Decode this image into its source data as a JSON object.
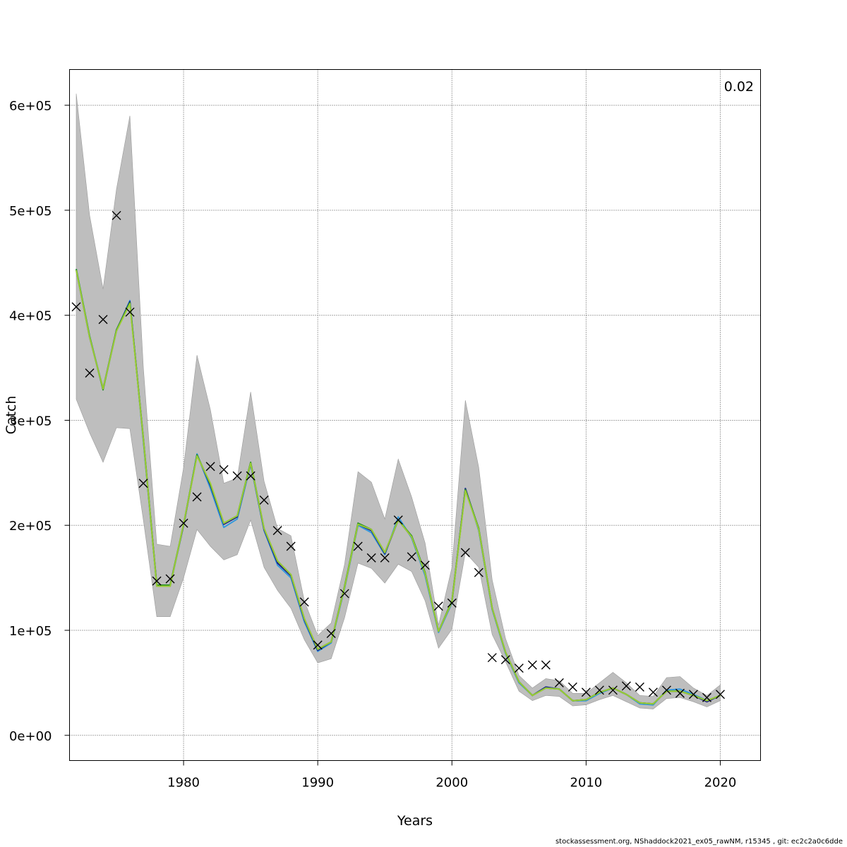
{
  "chart_data": {
    "type": "line",
    "title": "",
    "xlabel": "Years",
    "ylabel": "Catch",
    "corner_label": "0.02",
    "xlim": [
      1971.5,
      2023
    ],
    "ylim": [
      -24000,
      634000
    ],
    "xticks": [
      1980,
      1990,
      2000,
      2010,
      2020
    ],
    "xtick_labels": [
      "1980",
      "1990",
      "2000",
      "2010",
      "2020"
    ],
    "yticks": [
      0,
      100000,
      200000,
      300000,
      400000,
      500000,
      600000
    ],
    "ytick_labels": [
      "0e+00",
      "1e+05",
      "2e+05",
      "3e+05",
      "4e+05",
      "5e+05",
      "6e+05"
    ],
    "grid": true,
    "band_color": "#bebebe",
    "x": [
      1972,
      1973,
      1974,
      1975,
      1976,
      1977,
      1978,
      1979,
      1980,
      1981,
      1982,
      1983,
      1984,
      1985,
      1986,
      1987,
      1988,
      1989,
      1990,
      1991,
      1992,
      1993,
      1994,
      1995,
      1996,
      1997,
      1998,
      1999,
      2000,
      2001,
      2002,
      2003,
      2004,
      2005,
      2006,
      2007,
      2008,
      2009,
      2010,
      2011,
      2012,
      2013,
      2014,
      2015,
      2016,
      2017,
      2018,
      2019,
      2020
    ],
    "observed": {
      "marker": "x",
      "color": "#000000",
      "values": [
        408000,
        345000,
        396000,
        495000,
        403000,
        240000,
        147000,
        149000,
        202000,
        227000,
        256000,
        253000,
        247000,
        247000,
        224000,
        195000,
        180000,
        127000,
        86000,
        97000,
        135000,
        180000,
        169000,
        169000,
        205000,
        170000,
        162000,
        123000,
        126000,
        174000,
        155000,
        74000,
        72000,
        64000,
        67000,
        67000,
        50000,
        46000,
        41000,
        43000,
        43000,
        47000,
        46000,
        41000,
        43000,
        40000,
        39000,
        36000,
        39000
      ]
    },
    "upper": [
      611000,
      495000,
      425000,
      520000,
      590000,
      350000,
      182000,
      180000,
      255000,
      362000,
      310000,
      240000,
      245000,
      327000,
      242000,
      197000,
      190000,
      128000,
      95000,
      107000,
      163000,
      251000,
      241000,
      206000,
      263000,
      227000,
      183000,
      105000,
      160000,
      319000,
      255000,
      148000,
      92000,
      57000,
      45000,
      54000,
      52000,
      40000,
      40000,
      50000,
      60000,
      50000,
      38000,
      37000,
      55000,
      56000,
      45000,
      38000,
      48000
    ],
    "lower": [
      320000,
      288000,
      260000,
      293000,
      292000,
      205000,
      113000,
      113000,
      150000,
      196000,
      180000,
      167000,
      172000,
      205000,
      160000,
      138000,
      121000,
      91000,
      69000,
      73000,
      112000,
      164000,
      159000,
      145000,
      163000,
      156000,
      128000,
      83000,
      101000,
      174000,
      160000,
      96000,
      70000,
      42000,
      33000,
      38000,
      37000,
      28000,
      29000,
      34000,
      38000,
      32000,
      26000,
      25000,
      35000,
      36000,
      32000,
      27000,
      33000
    ],
    "series": [
      {
        "color": "#3399dd",
        "values": [
          444000,
          380000,
          330000,
          385000,
          414000,
          280000,
          142000,
          142000,
          200000,
          268000,
          235000,
          198000,
          206000,
          258000,
          195000,
          162000,
          150000,
          108000,
          80000,
          88000,
          140000,
          200000,
          193000,
          172000,
          208000,
          188000,
          152000,
          98000,
          126000,
          235000,
          195000,
          120000,
          78000,
          50000,
          38000,
          46000,
          44000,
          33000,
          33000,
          40000,
          45000,
          39000,
          30000,
          29000,
          43000,
          44000,
          39000,
          33000,
          38000
        ]
      },
      {
        "color": "#1a1a8a",
        "values": [
          443000,
          379000,
          330000,
          386000,
          413000,
          282000,
          143000,
          143000,
          200000,
          267000,
          238000,
          201000,
          208000,
          259000,
          196000,
          164000,
          152000,
          110000,
          81000,
          89000,
          141000,
          201000,
          195000,
          173000,
          205000,
          189000,
          154000,
          99000,
          127000,
          235000,
          196000,
          121000,
          79000,
          51000,
          38000,
          46000,
          44000,
          33000,
          34000,
          41000,
          45000,
          39000,
          31000,
          30000,
          42000,
          42000,
          38000,
          32000,
          38000
        ]
      },
      {
        "color": "#228b22",
        "values": [
          444000,
          380000,
          329000,
          386000,
          412000,
          283000,
          143000,
          143000,
          201000,
          267000,
          239000,
          202000,
          209000,
          260000,
          197000,
          166000,
          153000,
          111000,
          82000,
          89000,
          142000,
          202000,
          196000,
          174000,
          205000,
          190000,
          155000,
          99000,
          128000,
          234000,
          197000,
          121000,
          79000,
          51000,
          38000,
          45000,
          44000,
          33000,
          34000,
          41000,
          45000,
          39000,
          31000,
          30000,
          42000,
          42000,
          38000,
          33000,
          38000
        ]
      },
      {
        "color": "#9acd32",
        "values": [
          443000,
          379000,
          330000,
          385000,
          411000,
          282000,
          142000,
          142000,
          201000,
          266000,
          240000,
          202000,
          209000,
          259000,
          197000,
          166000,
          153000,
          111000,
          82000,
          89000,
          141000,
          201000,
          196000,
          174000,
          205000,
          189000,
          154000,
          99000,
          127000,
          233000,
          196000,
          121000,
          79000,
          51000,
          38000,
          45000,
          44000,
          33000,
          34000,
          41000,
          45000,
          39000,
          31000,
          30000,
          42000,
          42000,
          38000,
          33000,
          38000
        ]
      }
    ]
  },
  "footer": "stockassessment.org, NShaddock2021_ex05_rawNM, r15345 , git: ec2c2a0c6dde"
}
